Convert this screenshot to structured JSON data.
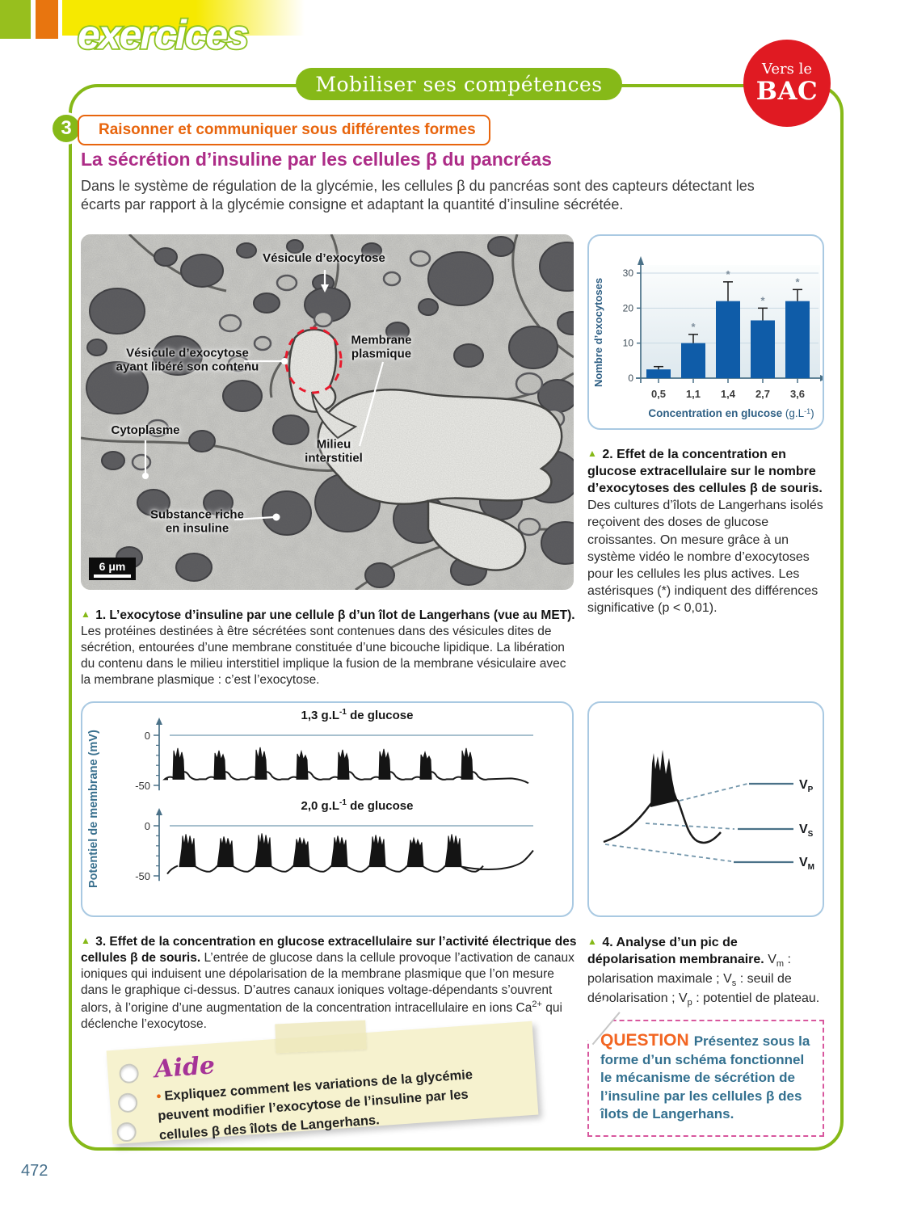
{
  "page": {
    "number": "472"
  },
  "header": {
    "wordmark": "exercices",
    "banner": "Mobiliser ses compétences",
    "badge_line1": "Vers le",
    "badge_line2": "BAC",
    "exercise_number": "3",
    "competence": "Raisonner et communiquer sous différentes formes"
  },
  "intro": {
    "title": "La sécrétion d’insuline par les cellules β du pancréas",
    "text": "Dans le système de régulation de la glycémie, les cellules β du pancréas sont des capteurs détectant les écarts par rapport à la glycémie consigne et adaptant la quantité d’insuline sécrétée."
  },
  "em_figure": {
    "labels": {
      "vesicule": "Vésicule d’exocytose",
      "vesicule_lib_l1": "Vésicule d’exocytose",
      "vesicule_lib_l2": "ayant libéré son contenu",
      "membrane_l1": "Membrane",
      "membrane_l2": "plasmique",
      "cytoplasme": "Cytoplasme",
      "milieu_l1": "Milieu",
      "milieu_l2": "interstitiel",
      "substance_l1": "Substance riche",
      "substance_l2": "en insuline",
      "scale": "6 μm"
    }
  },
  "captions": {
    "marker": "▲",
    "fig1_bold": "1. L’exocytose d’insuline par une cellule β d’un îlot de Langerhans (vue au MET).",
    "fig1_text": "Les protéines destinées à être sécrétées sont contenues dans des vésicules dites de sécrétion, entourées d’une membrane constituée d’une bicouche lipidique. La libération du contenu dans le milieu interstitiel implique la fusion de la membrane vésiculaire avec la membrane plasmique : c’est l’exocytose.",
    "fig2_bold": "2. Effet de la concentration en glucose extracellulaire sur le nombre d’exocytoses des cellules β de souris.",
    "fig2_text": "Des cultures d’îlots de Langerhans isolés reçoivent des doses de glucose croissantes. On mesure grâce à un système vidéo le nombre d’exocytoses pour les cellules les plus actives. Les astérisques (*) indiquent des différences significative (p < 0,01).",
    "fig3_bold": "3. Effet de la concentration en glucose extracellulaire sur l’activité électrique des cellules β de souris.",
    "fig3_text": "L’entrée de glucose dans la cellule provoque l’activation de canaux ioniques qui induisent une dépolarisation de la membrane plasmique que l’on mesure dans le graphique ci-dessus. D’autres canaux ioniques voltage-dépendants s’ouvrent alors, à l’origine d’une augmentation de la concentration intracellulaire en ions Ca",
    "fig3_sup": "2+",
    "fig3_tail": " qui déclenche l’exocytose.",
    "fig4_bold": "4. Analyse d’un pic de dépolarisation membranaire.",
    "fig4_p1": "V",
    "fig4_s1": "m",
    "fig4_p2": " : polarisation maximale ; V",
    "fig4_s2": "s",
    "fig4_p3": " : seuil de dépolarisation ; V",
    "fig4_s3": "p",
    "fig4_p4": " : potentiel de plateau."
  },
  "aide": {
    "title": "Aide",
    "bullet": "•",
    "text": "Expliquez comment les variations de la glycémie peuvent modifier l’exocytose de l’insuline par les cellules β des îlots de Langerhans."
  },
  "question": {
    "label": "QUESTION",
    "text": "Présentez sous la forme d’un schéma fonctionnel le mécanisme de sécrétion de l’insuline par les cellules β des îlots de Langerhans."
  },
  "chart_data": [
    {
      "id": "exocytosis_bar",
      "type": "bar",
      "categories": [
        "0,5",
        "1,1",
        "1,4",
        "2,7",
        "3,6"
      ],
      "values": [
        2.5,
        10,
        22,
        16.5,
        22
      ],
      "error_up": [
        0.8,
        2.5,
        5.5,
        3.5,
        3.3
      ],
      "significant": [
        false,
        true,
        true,
        true,
        true
      ],
      "ylabel": "Nombre d’exocytoses",
      "xlabel": "Concentration en glucose",
      "xlabel_unit": "g.L",
      "xlabel_sup": "-1",
      "yticks": [
        0,
        10,
        20,
        30
      ],
      "ylim": [
        0,
        33
      ],
      "grid": true,
      "bar_color": "#0f5ca8"
    },
    {
      "id": "membrane_potential",
      "type": "line",
      "ylabel": "Potentiel de membrane (mV)",
      "yticks": [
        0,
        -50
      ],
      "panels": [
        {
          "title_num": "1,3 g.L",
          "title_sup": "-1",
          "title_rest": " de glucose",
          "baseline_mV": -43,
          "plateau_mV": -22,
          "peak_mV": -12,
          "n_bursts": 8,
          "style": "narrow"
        },
        {
          "title_num": "2,0 g.L",
          "title_sup": "-1",
          "title_rest": " de glucose",
          "baseline_mV": -40,
          "plateau_mV": -20,
          "peak_mV": -10,
          "n_bursts": 8,
          "style": "wide"
        }
      ]
    },
    {
      "id": "depolarization_peak",
      "type": "line",
      "annotations": [
        {
          "label": "V",
          "sub": "P",
          "meaning": "potentiel de plateau"
        },
        {
          "label": "V",
          "sub": "S",
          "meaning": "seuil de dépolarisation"
        },
        {
          "label": "V",
          "sub": "M",
          "meaning": "polarisation maximale"
        }
      ]
    }
  ]
}
